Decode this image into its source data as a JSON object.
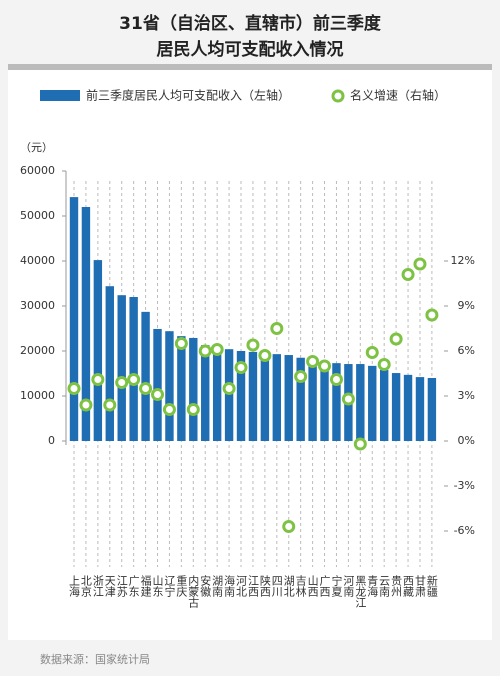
{
  "chart_data": {
    "type": "bar+scatter",
    "title": [
      "31省（自治区、直辖市）前三季度",
      "居民人均可支配收入情况"
    ],
    "unit_label": "（元）",
    "source": "数据来源：国家统计局",
    "categories": [
      "上海",
      "北京",
      "浙江",
      "天津",
      "江苏",
      "广东",
      "福建",
      "山东",
      "辽宁",
      "重庆",
      "内蒙古",
      "安徽",
      "湖南",
      "海南",
      "河北",
      "江西",
      "陕西",
      "四川",
      "湖北",
      "吉林",
      "山西",
      "广西",
      "宁夏",
      "河南",
      "黑龙江",
      "青海",
      "云南",
      "贵州",
      "西藏",
      "甘肃",
      "新疆"
    ],
    "series": [
      {
        "name": "前三季度居民人均可支配收入（左轴）",
        "color": "#1f6db3",
        "kind": "bar",
        "values": [
          54200,
          52000,
          40200,
          34400,
          32400,
          32000,
          28700,
          24900,
          24400,
          23300,
          22900,
          21300,
          20900,
          20400,
          20000,
          19800,
          19300,
          19300,
          19100,
          18500,
          17800,
          17600,
          17300,
          17100,
          17100,
          16700,
          15800,
          15100,
          14700,
          14200,
          14000
        ]
      },
      {
        "name": "名义增速（右轴）",
        "color": "#7dc242",
        "kind": "scatter",
        "axis": "y2",
        "values": [
          3.5,
          2.4,
          4.1,
          2.4,
          3.9,
          4.1,
          3.5,
          3.1,
          2.1,
          6.5,
          2.1,
          6.0,
          6.1,
          3.5,
          4.9,
          6.4,
          5.7,
          7.5,
          -5.7,
          4.3,
          5.3,
          5.0,
          4.1,
          2.8,
          -0.2,
          5.9,
          5.1,
          6.8,
          11.1,
          11.8,
          8.4
        ]
      }
    ],
    "ylim": [
      -28000,
      60000
    ],
    "yticks": [
      0,
      10000,
      20000,
      30000,
      40000,
      50000,
      60000
    ],
    "y2lim": [
      -8.4,
      18
    ],
    "y2ticks": [
      {
        "value": -6,
        "label": "-6%"
      },
      {
        "value": -3,
        "label": "-3%"
      },
      {
        "value": 0,
        "label": "0%"
      },
      {
        "value": 3,
        "label": "3%"
      },
      {
        "value": 6,
        "label": "6%"
      },
      {
        "value": 9,
        "label": "9%"
      },
      {
        "value": 12,
        "label": "12%"
      }
    ],
    "grid": true
  }
}
